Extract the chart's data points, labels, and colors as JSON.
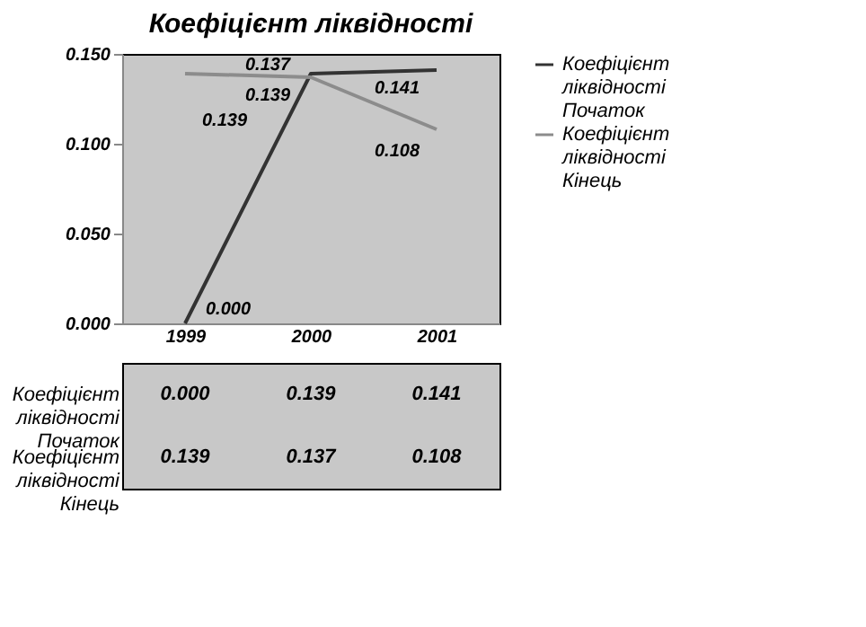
{
  "chart_data": {
    "type": "line",
    "title": "Коефіцієнт ліквідності",
    "categories": [
      "1999",
      "2000",
      "2001"
    ],
    "series": [
      {
        "name": "Коефіцієнт ліквідності Початок",
        "color": "#333333",
        "values": [
          0.0,
          0.139,
          0.141
        ],
        "value_labels": [
          "0.000",
          "0.139",
          "0.141"
        ]
      },
      {
        "name": "Коефіцієнт ліквідності Кінець",
        "color": "#8c8c8c",
        "values": [
          0.139,
          0.137,
          0.108
        ],
        "value_labels": [
          "0.139",
          "0.137",
          "0.108"
        ]
      }
    ],
    "ylim": [
      0,
      0.15
    ],
    "yticks": [
      {
        "value": 0,
        "label": "0.000"
      },
      {
        "value": 0.05,
        "label": "0.050"
      },
      {
        "value": 0.1,
        "label": "0.100"
      },
      {
        "value": 0.15,
        "label": "0.150"
      }
    ],
    "grid": false,
    "legend": "right",
    "data_labels": true,
    "marker": "none",
    "line_style": "solid"
  }
}
